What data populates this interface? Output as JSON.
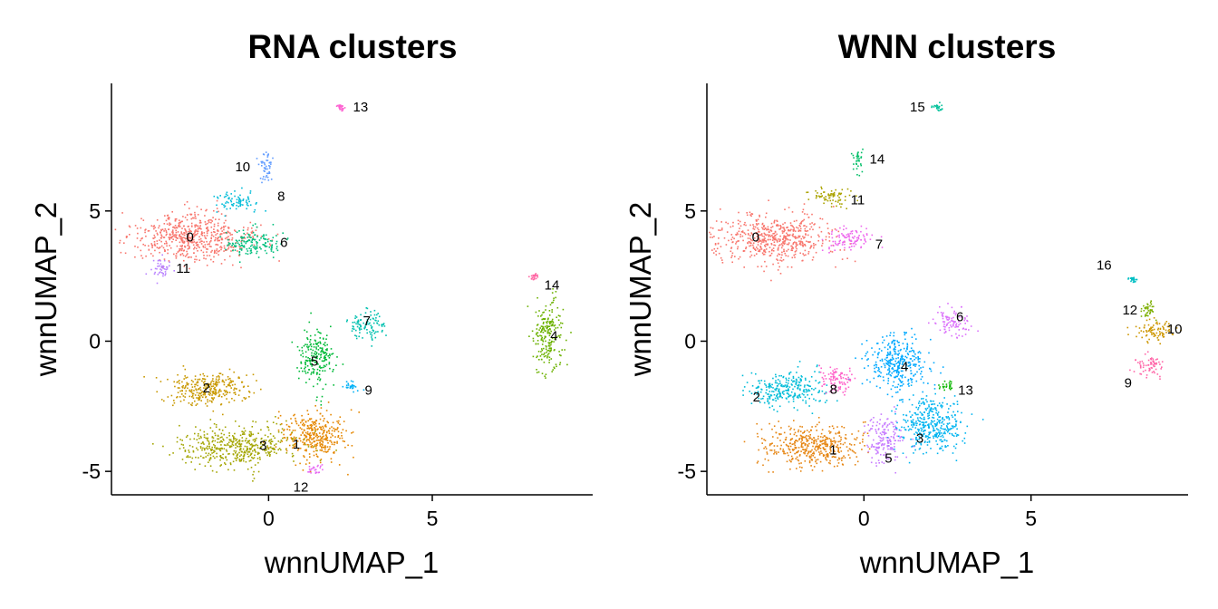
{
  "chart_data": [
    {
      "type": "scatter",
      "title": "RNA clusters",
      "xlabel": "wnnUMAP_1",
      "ylabel": "wnnUMAP_2",
      "xlim": [
        -4.8,
        9.9
      ],
      "ylim": [
        -5.9,
        9.9
      ],
      "xticks": [
        "0",
        "5"
      ],
      "yticks": [
        "-5",
        "0",
        "5"
      ],
      "clusters": [
        {
          "label": "0",
          "color": "#F8766D",
          "center": [
            -2.4,
            4.0
          ],
          "rx": 1.7,
          "ry": 0.85
        },
        {
          "label": "1",
          "color": "#E58700",
          "center": [
            1.4,
            -3.6
          ],
          "rx": 0.9,
          "ry": 0.9
        },
        {
          "label": "2",
          "color": "#C99800",
          "center": [
            -1.9,
            -1.8
          ],
          "rx": 1.2,
          "ry": 0.6
        },
        {
          "label": "3",
          "color": "#A3A500",
          "center": [
            -1.0,
            -4.0
          ],
          "rx": 1.6,
          "ry": 0.7
        },
        {
          "label": "4",
          "color": "#6BB100",
          "center": [
            8.5,
            0.2
          ],
          "rx": 0.4,
          "ry": 1.3
        },
        {
          "label": "5",
          "color": "#00BA38",
          "center": [
            1.4,
            -0.6
          ],
          "rx": 0.5,
          "ry": 1.0
        },
        {
          "label": "6",
          "color": "#00BF7D",
          "center": [
            -0.5,
            3.8
          ],
          "rx": 0.8,
          "ry": 0.45
        },
        {
          "label": "7",
          "color": "#00C0AF",
          "center": [
            3.0,
            0.6
          ],
          "rx": 0.5,
          "ry": 0.5
        },
        {
          "label": "8",
          "color": "#00BCD8",
          "center": [
            -1.0,
            5.4
          ],
          "rx": 0.6,
          "ry": 0.3
        },
        {
          "label": "9",
          "color": "#00B0F6",
          "center": [
            2.5,
            -1.7
          ],
          "rx": 0.25,
          "ry": 0.2
        },
        {
          "label": "10",
          "color": "#619CFF",
          "center": [
            -0.1,
            6.7
          ],
          "rx": 0.2,
          "ry": 0.6
        },
        {
          "label": "11",
          "color": "#B983FF",
          "center": [
            -3.3,
            2.8
          ],
          "rx": 0.3,
          "ry": 0.35
        },
        {
          "label": "12",
          "color": "#E76BF3",
          "center": [
            1.4,
            -4.9
          ],
          "rx": 0.25,
          "ry": 0.2
        },
        {
          "label": "13",
          "color": "#FD61D1",
          "center": [
            2.2,
            9.0
          ],
          "rx": 0.1,
          "ry": 0.1
        },
        {
          "label": "14",
          "color": "#FF67A4",
          "center": [
            8.1,
            2.5
          ],
          "rx": 0.1,
          "ry": 0.1
        }
      ]
    },
    {
      "type": "scatter",
      "title": "WNN clusters",
      "xlabel": "wnnUMAP_1",
      "ylabel": "wnnUMAP_2",
      "xlim": [
        -4.7,
        9.7
      ],
      "ylim": [
        -5.9,
        9.9
      ],
      "xticks": [
        "0",
        "5"
      ],
      "yticks": [
        "-5",
        "0",
        "5"
      ],
      "clusters": [
        {
          "label": "0",
          "color": "#F8766D",
          "center": [
            -2.7,
            4.0
          ],
          "rx": 1.6,
          "ry": 0.85
        },
        {
          "label": "1",
          "color": "#E68613",
          "center": [
            -1.6,
            -4.0
          ],
          "rx": 1.4,
          "ry": 0.75
        },
        {
          "label": "2",
          "color": "#00BCD8",
          "center": [
            -2.4,
            -1.8
          ],
          "rx": 1.0,
          "ry": 0.65
        },
        {
          "label": "3",
          "color": "#00B4F0",
          "center": [
            2.0,
            -3.2
          ],
          "rx": 0.9,
          "ry": 1.0
        },
        {
          "label": "4",
          "color": "#00A9FF",
          "center": [
            1.0,
            -0.8
          ],
          "rx": 0.9,
          "ry": 0.9
        },
        {
          "label": "5",
          "color": "#C77CFF",
          "center": [
            0.6,
            -3.8
          ],
          "rx": 0.5,
          "ry": 0.8
        },
        {
          "label": "6",
          "color": "#DB72FB",
          "center": [
            2.6,
            0.8
          ],
          "rx": 0.5,
          "ry": 0.45
        },
        {
          "label": "7",
          "color": "#ED68ED",
          "center": [
            -0.5,
            3.9
          ],
          "rx": 0.6,
          "ry": 0.4
        },
        {
          "label": "8",
          "color": "#FF61C9",
          "center": [
            -0.8,
            -1.5
          ],
          "rx": 0.45,
          "ry": 0.5
        },
        {
          "label": "9",
          "color": "#FF66A8",
          "center": [
            8.5,
            -0.9
          ],
          "rx": 0.4,
          "ry": 0.4
        },
        {
          "label": "10",
          "color": "#CD9600",
          "center": [
            8.7,
            0.4
          ],
          "rx": 0.6,
          "ry": 0.35
        },
        {
          "label": "11",
          "color": "#ABA300",
          "center": [
            -1.0,
            5.6
          ],
          "rx": 0.6,
          "ry": 0.3
        },
        {
          "label": "12",
          "color": "#7CAE00",
          "center": [
            8.5,
            1.2
          ],
          "rx": 0.25,
          "ry": 0.35
        },
        {
          "label": "13",
          "color": "#0CB702",
          "center": [
            2.5,
            -1.7
          ],
          "rx": 0.25,
          "ry": 0.2
        },
        {
          "label": "14",
          "color": "#00BE67",
          "center": [
            -0.2,
            7.0
          ],
          "rx": 0.15,
          "ry": 0.5
        },
        {
          "label": "15",
          "color": "#00C19A",
          "center": [
            2.2,
            9.0
          ],
          "rx": 0.15,
          "ry": 0.1
        },
        {
          "label": "16",
          "color": "#00BFC4",
          "center": [
            8.0,
            2.4
          ],
          "rx": 0.1,
          "ry": 0.1
        }
      ]
    }
  ]
}
